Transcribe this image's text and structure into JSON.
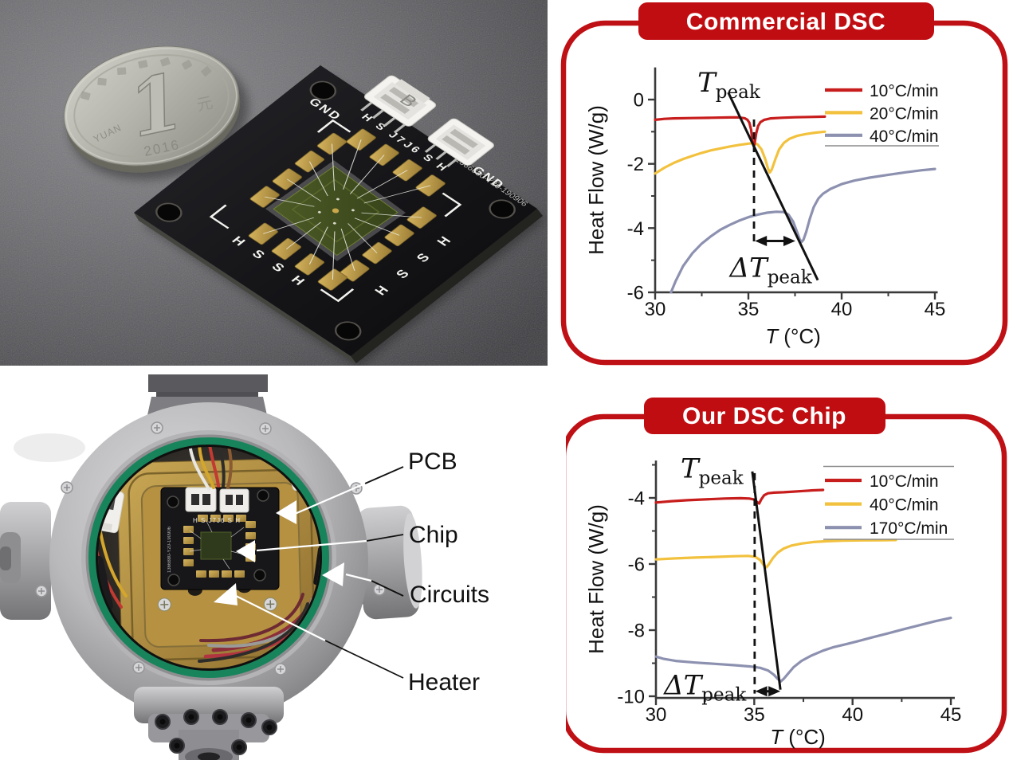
{
  "page": {
    "background": "#ffffff"
  },
  "colors": {
    "accent_red": "#bf1015",
    "badge_red": "#c00d12",
    "curve_red": "#c81d1d",
    "curve_yellow": "#f2c13d",
    "curve_slate": "#8d91b0",
    "oring_green": "#18845c"
  },
  "photo_tl": {
    "description": "DSC chip on black PCB beside a one-yuan coin on gray fabric",
    "coin": {
      "denomination": "1",
      "year": "2016",
      "pinyin": "YUAN",
      "unit": "元"
    },
    "pcb": {
      "gnd": "GND",
      "edge_top": "H S J7J6 S H",
      "edge_left": "H S S H",
      "edge_bottom": "H S S H",
      "connector_mark": "B",
      "serial": "1366880-Y20-190906"
    }
  },
  "photo_bl": {
    "description": "Vacuum chamber with heater stage, PCB and chip inside green O-ring",
    "callouts": [
      {
        "label": "PCB"
      },
      {
        "label": "Chip"
      },
      {
        "label": "Circuits"
      },
      {
        "label": "Heater"
      }
    ],
    "pcb_text": "H S J7J6 S H"
  },
  "chart_data": [
    {
      "type": "line",
      "title": "Commercial DSC",
      "xlabel_t": "T",
      "xlabel_units": " (°C)",
      "ylabel": "Heat Flow (W/g)",
      "xlim": [
        30,
        45.15
      ],
      "ylim": [
        -6,
        1.0
      ],
      "xticks": [
        30,
        35,
        40,
        45
      ],
      "xminor": [
        32.5,
        37.5,
        42.5
      ],
      "yticks": [
        0,
        -2,
        -4,
        -6
      ],
      "yminor": [
        -1,
        -3,
        -5
      ],
      "grid": false,
      "legend_position": "upper right",
      "series": [
        {
          "name": "10°C/min",
          "color": "#c81d1d",
          "points": [
            [
              30,
              -0.63
            ],
            [
              30.5,
              -0.6
            ],
            [
              31,
              -0.585
            ],
            [
              32,
              -0.575
            ],
            [
              33,
              -0.565
            ],
            [
              34,
              -0.555
            ],
            [
              34.5,
              -0.555
            ],
            [
              34.8,
              -0.58
            ],
            [
              34.95,
              -0.63
            ],
            [
              35.05,
              -0.72
            ],
            [
              35.15,
              -0.95
            ],
            [
              35.22,
              -1.3
            ],
            [
              35.28,
              -1.45
            ],
            [
              35.33,
              -1.38
            ],
            [
              35.42,
              -1.05
            ],
            [
              35.52,
              -0.82
            ],
            [
              35.65,
              -0.7
            ],
            [
              35.85,
              -0.63
            ],
            [
              36.2,
              -0.585
            ],
            [
              36.8,
              -0.565
            ],
            [
              37.5,
              -0.55
            ],
            [
              38.3,
              -0.54
            ],
            [
              39.1,
              -0.53
            ]
          ]
        },
        {
          "name": "20°C/min",
          "color": "#f2c13d",
          "points": [
            [
              30,
              -2.3
            ],
            [
              30.5,
              -2.12
            ],
            [
              31,
              -1.97
            ],
            [
              31.5,
              -1.85
            ],
            [
              32,
              -1.75
            ],
            [
              32.5,
              -1.66
            ],
            [
              33,
              -1.58
            ],
            [
              33.5,
              -1.52
            ],
            [
              34,
              -1.46
            ],
            [
              34.5,
              -1.41
            ],
            [
              35,
              -1.37
            ],
            [
              35.3,
              -1.35
            ],
            [
              35.5,
              -1.4
            ],
            [
              35.7,
              -1.55
            ],
            [
              35.9,
              -1.85
            ],
            [
              36.05,
              -2.15
            ],
            [
              36.15,
              -2.27
            ],
            [
              36.25,
              -2.18
            ],
            [
              36.45,
              -1.85
            ],
            [
              36.65,
              -1.55
            ],
            [
              36.9,
              -1.35
            ],
            [
              37.2,
              -1.22
            ],
            [
              37.6,
              -1.13
            ],
            [
              38.1,
              -1.07
            ],
            [
              38.6,
              -1.03
            ],
            [
              39.1,
              -1.0
            ]
          ]
        },
        {
          "name": "40°C/min",
          "color": "#8d91b0",
          "points": [
            [
              30.85,
              -6.0
            ],
            [
              31.1,
              -5.65
            ],
            [
              31.5,
              -5.18
            ],
            [
              32,
              -4.78
            ],
            [
              32.5,
              -4.48
            ],
            [
              33,
              -4.25
            ],
            [
              33.5,
              -4.05
            ],
            [
              34,
              -3.9
            ],
            [
              34.5,
              -3.77
            ],
            [
              35,
              -3.66
            ],
            [
              35.5,
              -3.58
            ],
            [
              36,
              -3.52
            ],
            [
              36.5,
              -3.49
            ],
            [
              36.9,
              -3.5
            ],
            [
              37.15,
              -3.58
            ],
            [
              37.4,
              -3.8
            ],
            [
              37.6,
              -4.1
            ],
            [
              37.75,
              -4.35
            ],
            [
              37.85,
              -4.43
            ],
            [
              37.95,
              -4.37
            ],
            [
              38.1,
              -4.12
            ],
            [
              38.3,
              -3.7
            ],
            [
              38.5,
              -3.35
            ],
            [
              38.75,
              -3.08
            ],
            [
              39,
              -2.93
            ],
            [
              39.4,
              -2.78
            ],
            [
              40,
              -2.63
            ],
            [
              40.7,
              -2.52
            ],
            [
              41.5,
              -2.43
            ],
            [
              42.5,
              -2.34
            ],
            [
              43.5,
              -2.26
            ],
            [
              44.3,
              -2.2
            ],
            [
              45,
              -2.16
            ]
          ]
        }
      ],
      "annotations": {
        "tpeak": {
          "main": "T",
          "sub": "peak",
          "x": 33.95,
          "y": 0.52
        },
        "dtpeak": {
          "main": "ΔT",
          "sub": "peak",
          "x": 36.2,
          "y": -5.25
        },
        "trend_line": {
          "x1": 33.92,
          "y1": 0.22,
          "x2": 38.72,
          "y2": -5.62
        },
        "dashed_line": {
          "x": 35.3,
          "y1": -0.62,
          "y2": -4.45
        },
        "arrow": {
          "x1": 35.35,
          "x2": 37.52,
          "y": -4.4
        }
      }
    },
    {
      "type": "line",
      "title": "Our DSC Chip",
      "xlabel_t": "T",
      "xlabel_units": " (°C)",
      "ylabel": "Heat Flow (W/g)",
      "xlim": [
        30,
        45.2
      ],
      "ylim": [
        -10.05,
        -2.87
      ],
      "xticks": [
        30,
        35,
        40,
        45
      ],
      "xminor": [
        32.5,
        37.5,
        42.5
      ],
      "yticks": [
        -4,
        -6,
        -8,
        -10
      ],
      "yminor": [
        -3,
        -5,
        -7,
        -9
      ],
      "grid": false,
      "legend_position": "upper right",
      "series": [
        {
          "name": "10°C/min",
          "color": "#c81d1d",
          "points": [
            [
              30,
              -4.14
            ],
            [
              30.8,
              -4.1
            ],
            [
              31.6,
              -4.07
            ],
            [
              32.5,
              -4.045
            ],
            [
              33.5,
              -4.02
            ],
            [
              34.3,
              -4.01
            ],
            [
              34.75,
              -4.02
            ],
            [
              35,
              -4.05
            ],
            [
              35.15,
              -4.13
            ],
            [
              35.25,
              -4.17
            ],
            [
              35.35,
              -4.05
            ],
            [
              35.5,
              -3.92
            ],
            [
              35.7,
              -3.86
            ],
            [
              36,
              -3.84
            ],
            [
              36.5,
              -3.83
            ],
            [
              37,
              -3.81
            ],
            [
              37.5,
              -3.79
            ],
            [
              38,
              -3.77
            ],
            [
              38.5,
              -3.76
            ]
          ]
        },
        {
          "name": "40°C/min",
          "color": "#f2c13d",
          "points": [
            [
              30,
              -5.86
            ],
            [
              31,
              -5.83
            ],
            [
              32,
              -5.805
            ],
            [
              33,
              -5.785
            ],
            [
              34,
              -5.765
            ],
            [
              34.7,
              -5.755
            ],
            [
              35.05,
              -5.78
            ],
            [
              35.3,
              -5.88
            ],
            [
              35.5,
              -6.05
            ],
            [
              35.62,
              -6.1
            ],
            [
              35.75,
              -6.0
            ],
            [
              35.95,
              -5.82
            ],
            [
              36.2,
              -5.65
            ],
            [
              36.5,
              -5.53
            ],
            [
              36.9,
              -5.44
            ],
            [
              37.4,
              -5.38
            ],
            [
              38,
              -5.335
            ],
            [
              38.7,
              -5.31
            ],
            [
              39.5,
              -5.295
            ],
            [
              40.5,
              -5.285
            ],
            [
              41.5,
              -5.28
            ],
            [
              42.2,
              -5.275
            ]
          ]
        },
        {
          "name": "170°C/min",
          "color": "#8d91b0",
          "points": [
            [
              30,
              -8.8
            ],
            [
              30.4,
              -8.87
            ],
            [
              31,
              -8.93
            ],
            [
              32,
              -8.98
            ],
            [
              33,
              -9.02
            ],
            [
              34,
              -9.06
            ],
            [
              34.8,
              -9.1
            ],
            [
              35.3,
              -9.14
            ],
            [
              35.7,
              -9.22
            ],
            [
              36,
              -9.35
            ],
            [
              36.2,
              -9.48
            ],
            [
              36.35,
              -9.55
            ],
            [
              36.5,
              -9.47
            ],
            [
              36.7,
              -9.33
            ],
            [
              37,
              -9.12
            ],
            [
              37.4,
              -8.93
            ],
            [
              37.9,
              -8.77
            ],
            [
              38.5,
              -8.62
            ],
            [
              39,
              -8.52
            ],
            [
              39.7,
              -8.42
            ],
            [
              40.3,
              -8.33
            ],
            [
              41,
              -8.22
            ],
            [
              41.8,
              -8.1
            ],
            [
              42.6,
              -7.97
            ],
            [
              43.4,
              -7.85
            ],
            [
              44.2,
              -7.73
            ],
            [
              45,
              -7.63
            ]
          ]
        }
      ],
      "annotations": {
        "tpeak": {
          "main": "T",
          "sub": "peak",
          "x": 32.85,
          "y": -3.12
        },
        "dtpeak": {
          "main": "ΔT",
          "sub": "peak",
          "x": 32.5,
          "y": -9.68
        },
        "trend_line": {
          "x1": 34.9,
          "y1": -3.2,
          "x2": 36.33,
          "y2": -9.8
        },
        "dashed_line": {
          "x": 35.02,
          "y1": -3.25,
          "y2": -9.92
        },
        "arrow": {
          "x1": 35.05,
          "x2": 36.33,
          "y": -9.85
        }
      }
    }
  ]
}
